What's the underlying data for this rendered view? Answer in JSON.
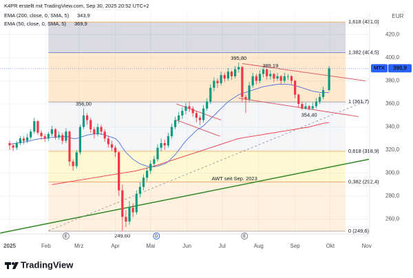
{
  "chart_data": {
    "type": "candlestick",
    "attribution": "K4PR erstellt mit TradingView.com, Sep 30, 2025 20:52 UTC+2",
    "brand": "TradingView",
    "currency": "EUR",
    "xlim": [
      -8.2,
      306.5
    ],
    "ylim": [
      247.2,
      439.4
    ],
    "grid": true,
    "up_color": "#089981",
    "down_color": "#f23645",
    "xticks": [
      {
        "value": 0,
        "label": "2025"
      },
      {
        "value": 31,
        "label": "Feb"
      },
      {
        "value": 59,
        "label": "Mrz"
      },
      {
        "value": 90,
        "label": "Apr"
      },
      {
        "value": 120,
        "label": "Mai"
      },
      {
        "value": 151,
        "label": "Jun"
      },
      {
        "value": 181,
        "label": "Jul"
      },
      {
        "value": 212,
        "label": "Aug"
      },
      {
        "value": 243,
        "label": "Sep"
      },
      {
        "value": 273,
        "label": "Okt"
      },
      {
        "value": 304,
        "label": "Nov"
      }
    ],
    "yticks": [
      {
        "value": 260,
        "label": "260,0"
      },
      {
        "value": 280,
        "label": "280,0"
      },
      {
        "value": 300,
        "label": "300,0"
      },
      {
        "value": 320,
        "label": "320,0"
      },
      {
        "value": 340,
        "label": "340,0"
      },
      {
        "value": 360,
        "label": "360,0"
      },
      {
        "value": 380,
        "label": "380,0"
      },
      {
        "value": 400,
        "label": "400,0"
      },
      {
        "value": 420,
        "label": "420,0"
      }
    ],
    "x": [
      0,
      3,
      6,
      9,
      12,
      15,
      18,
      21,
      24,
      27,
      30,
      33,
      36,
      39,
      42,
      45,
      48,
      51,
      54,
      57,
      60,
      63,
      66,
      69,
      72,
      75,
      78,
      81,
      84,
      87,
      90,
      93,
      96,
      99,
      102,
      105,
      108,
      111,
      114,
      117,
      120,
      123,
      126,
      129,
      132,
      135,
      138,
      141,
      144,
      147,
      150,
      153,
      156,
      159,
      162,
      165,
      168,
      171,
      174,
      177,
      180,
      183,
      186,
      189,
      192,
      195,
      198,
      201,
      204,
      207,
      210,
      213,
      216,
      219,
      222,
      225,
      228,
      231,
      234,
      237,
      240,
      243,
      246,
      249,
      252,
      255,
      258,
      261,
      264,
      267,
      272
    ],
    "open": [
      326,
      324,
      322,
      326,
      330,
      328,
      331,
      336,
      345,
      335,
      332,
      330,
      334,
      338,
      331,
      333,
      328,
      336,
      310,
      306,
      318,
      340,
      350,
      346,
      338,
      334,
      340,
      336,
      330,
      325,
      322,
      318,
      285,
      262,
      258,
      270,
      266,
      282,
      288,
      296,
      302,
      308,
      312,
      322,
      326,
      324,
      332,
      340,
      346,
      350,
      354,
      358,
      356,
      352,
      348,
      346,
      356,
      362,
      374,
      380,
      378,
      385,
      382,
      388,
      384,
      390,
      392,
      366,
      364,
      376,
      384,
      380,
      386,
      390,
      384,
      386,
      382,
      384,
      380,
      384,
      384,
      380,
      368,
      360,
      356,
      358,
      356,
      358,
      362,
      366,
      372
    ],
    "high": [
      328,
      326,
      328,
      332,
      332,
      334,
      338,
      348,
      346,
      337,
      334,
      336,
      341,
      339,
      336,
      335,
      339,
      337,
      312,
      320,
      342,
      356,
      352,
      348,
      340,
      343,
      342,
      338,
      332,
      328,
      324,
      319,
      290,
      268,
      276,
      274,
      285,
      292,
      299,
      305,
      311,
      315,
      325,
      330,
      329,
      335,
      343,
      349,
      353,
      357,
      361,
      362,
      358,
      354,
      350,
      359,
      365,
      377,
      383,
      382,
      388,
      387,
      391,
      389,
      393,
      395.8,
      393,
      368,
      379,
      387,
      386,
      389,
      391,
      391,
      389.19,
      387,
      387,
      385,
      387,
      386,
      385,
      381,
      369,
      362,
      361,
      359,
      361,
      365,
      369,
      375,
      393
    ],
    "low": [
      320,
      319,
      320,
      324,
      325,
      326,
      329,
      334,
      333,
      329,
      327,
      328,
      332,
      329,
      329,
      325,
      326,
      306,
      302,
      304,
      316,
      338,
      342,
      335,
      330,
      332,
      333,
      327,
      322,
      319,
      314,
      280,
      249.6,
      253,
      255,
      262,
      264,
      279,
      285,
      293,
      299,
      305,
      310,
      319,
      320,
      322,
      330,
      338,
      343,
      347,
      351,
      353,
      349,
      344,
      342,
      344,
      354,
      360,
      371,
      374,
      376,
      379,
      380,
      381,
      382,
      387,
      362,
      352,
      362,
      374,
      377,
      378,
      383,
      381,
      381,
      379,
      380,
      377,
      378,
      381,
      377,
      365,
      357,
      354.8,
      355,
      354.4,
      355,
      356,
      360,
      364,
      371
    ],
    "close": [
      324,
      322,
      326,
      330,
      328,
      331,
      336,
      345,
      335,
      332,
      330,
      334,
      338,
      331,
      333,
      328,
      336,
      310,
      306,
      318,
      340,
      350,
      346,
      338,
      334,
      340,
      336,
      330,
      325,
      322,
      318,
      285,
      262,
      258,
      270,
      266,
      282,
      288,
      296,
      302,
      308,
      312,
      322,
      326,
      324,
      332,
      340,
      346,
      350,
      354,
      358,
      356,
      352,
      348,
      346,
      356,
      362,
      374,
      380,
      378,
      385,
      382,
      388,
      384,
      390,
      392,
      366,
      364,
      376,
      384,
      380,
      386,
      390,
      384,
      386,
      382,
      384,
      380,
      384,
      384,
      380,
      368,
      360,
      356,
      358,
      356,
      358,
      362,
      366,
      372,
      390.9
    ],
    "series": [
      {
        "name": "EMA (200, close, 0, SMA, 5)",
        "color": "#f23645",
        "last_label": "343,9",
        "values": [
          null,
          null,
          null,
          null,
          null,
          null,
          null,
          null,
          null,
          null,
          null,
          null,
          290,
          290.5,
          291,
          291.5,
          292,
          292.5,
          293,
          293.5,
          294,
          294.5,
          295,
          295.5,
          296,
          296.5,
          297,
          297.5,
          298,
          298.5,
          299,
          299.5,
          300,
          300.5,
          301,
          301.5,
          302,
          302.8,
          303.6,
          304.4,
          305.2,
          306,
          307,
          308,
          309,
          310,
          311,
          312,
          313,
          314,
          315,
          316,
          317,
          318,
          319,
          320,
          321,
          322,
          323,
          324,
          325,
          326,
          327,
          328,
          329,
          330,
          330.5,
          331,
          331.5,
          332,
          332.5,
          333,
          333.5,
          334,
          334.5,
          335,
          335.5,
          336,
          336.5,
          337,
          337.5,
          338,
          338.5,
          339,
          339.5,
          340,
          340.8,
          341.6,
          342.4,
          343.2,
          343.9
        ]
      },
      {
        "name": "EMA (50, close, 0, SMA, 5)",
        "color": "#4a6ee0",
        "last_label": "369,9",
        "values": [
          325,
          325.5,
          326,
          326.5,
          327,
          327.5,
          328,
          329,
          329.5,
          330,
          330,
          330.5,
          331,
          331,
          331.5,
          331.5,
          332,
          331,
          330,
          330,
          331,
          332,
          333,
          333.5,
          334,
          334,
          334,
          333,
          332,
          331,
          330,
          327,
          322,
          318,
          315,
          312,
          310,
          308,
          307,
          306,
          305.5,
          305.5,
          306,
          307,
          308,
          310,
          313,
          316,
          320,
          324,
          328,
          331,
          334,
          337,
          339,
          341,
          344,
          347,
          350,
          353,
          356,
          359,
          362,
          364,
          366,
          368,
          369,
          370,
          371,
          372,
          373,
          374,
          375,
          375.5,
          376,
          376.5,
          377,
          377,
          377,
          377,
          376.5,
          376,
          375,
          374,
          373,
          372,
          371,
          370.5,
          370,
          369.8,
          369.9
        ]
      }
    ],
    "last_price": {
      "name": "MTX",
      "value": 390.9,
      "label": "390,9",
      "color": "#2962ff"
    },
    "fib_x": [
      33,
      286
    ],
    "fib_levels": [
      {
        "value": 431.0,
        "label": "1,618 (431,0)",
        "color": "#f7a34a",
        "fill": "rgba(120,123,150,0.28)"
      },
      {
        "value": 404.5,
        "label": "1,382 (404,5)",
        "color": "#5b6fd6",
        "fill": "rgba(255,166,60,0.25)"
      },
      {
        "value": 361.7,
        "label": "1 (361,7)",
        "color": "#9598a1",
        "fill": "rgba(215,218,228,0.25)"
      },
      {
        "value": 318.9,
        "label": "0,618 (318,9)",
        "color": "#f7a34a",
        "fill": "rgba(255,235,110,0.3)"
      },
      {
        "value": 292.4,
        "label": "0,382 (292,4)",
        "color": "#f08a4b",
        "fill": "rgba(255,190,110,0.22)"
      },
      {
        "value": 249.6,
        "label": "0 (249,6)",
        "color": "#9598a1"
      }
    ],
    "annotations": [
      {
        "x": 63,
        "value": 356.0,
        "label": "356,00",
        "side": "above"
      },
      {
        "x": 96,
        "value": 249.6,
        "label": "249,60",
        "side": "below"
      },
      {
        "x": 195,
        "value": 395.8,
        "label": "395,80",
        "side": "above"
      },
      {
        "x": 222,
        "value": 389.19,
        "label": "389,19",
        "side": "above"
      },
      {
        "x": 255,
        "value": 354.4,
        "label": "354,40",
        "side": "below"
      }
    ],
    "trend_note": {
      "x": 172,
      "value": 295,
      "label": "AWT seit Sep. 2023",
      "color": "#2e7d32"
    },
    "lines": [
      {
        "x": [
          -8,
          306
        ],
        "y": [
          248,
          312
        ],
        "color": "#3d8b2f",
        "width": 1.6,
        "dash": false
      },
      {
        "x": [
          33,
          306
        ],
        "y": [
          250,
          363.6
        ],
        "color": "#9598a1",
        "width": 0.9,
        "dash": true
      },
      {
        "x": [
          198,
          303
        ],
        "y": [
          395,
          380
        ],
        "color": "#e0495a",
        "width": 0.9,
        "dash": false
      },
      {
        "x": [
          195,
          297
        ],
        "y": [
          365,
          349
        ],
        "color": "#e0495a",
        "width": 0.9,
        "dash": false
      },
      {
        "x": [
          142,
          180
        ],
        "y": [
          360,
          346
        ],
        "color": "#e0495a",
        "width": 0.9,
        "dash": false
      },
      {
        "x": [
          142,
          179
        ],
        "y": [
          346,
          332
        ],
        "color": "#e0495a",
        "width": 0.9,
        "dash": false
      }
    ],
    "events": [
      {
        "x": 48,
        "label": "E"
      },
      {
        "x": 125,
        "label": "D"
      },
      {
        "x": 200,
        "label": "E"
      }
    ]
  }
}
